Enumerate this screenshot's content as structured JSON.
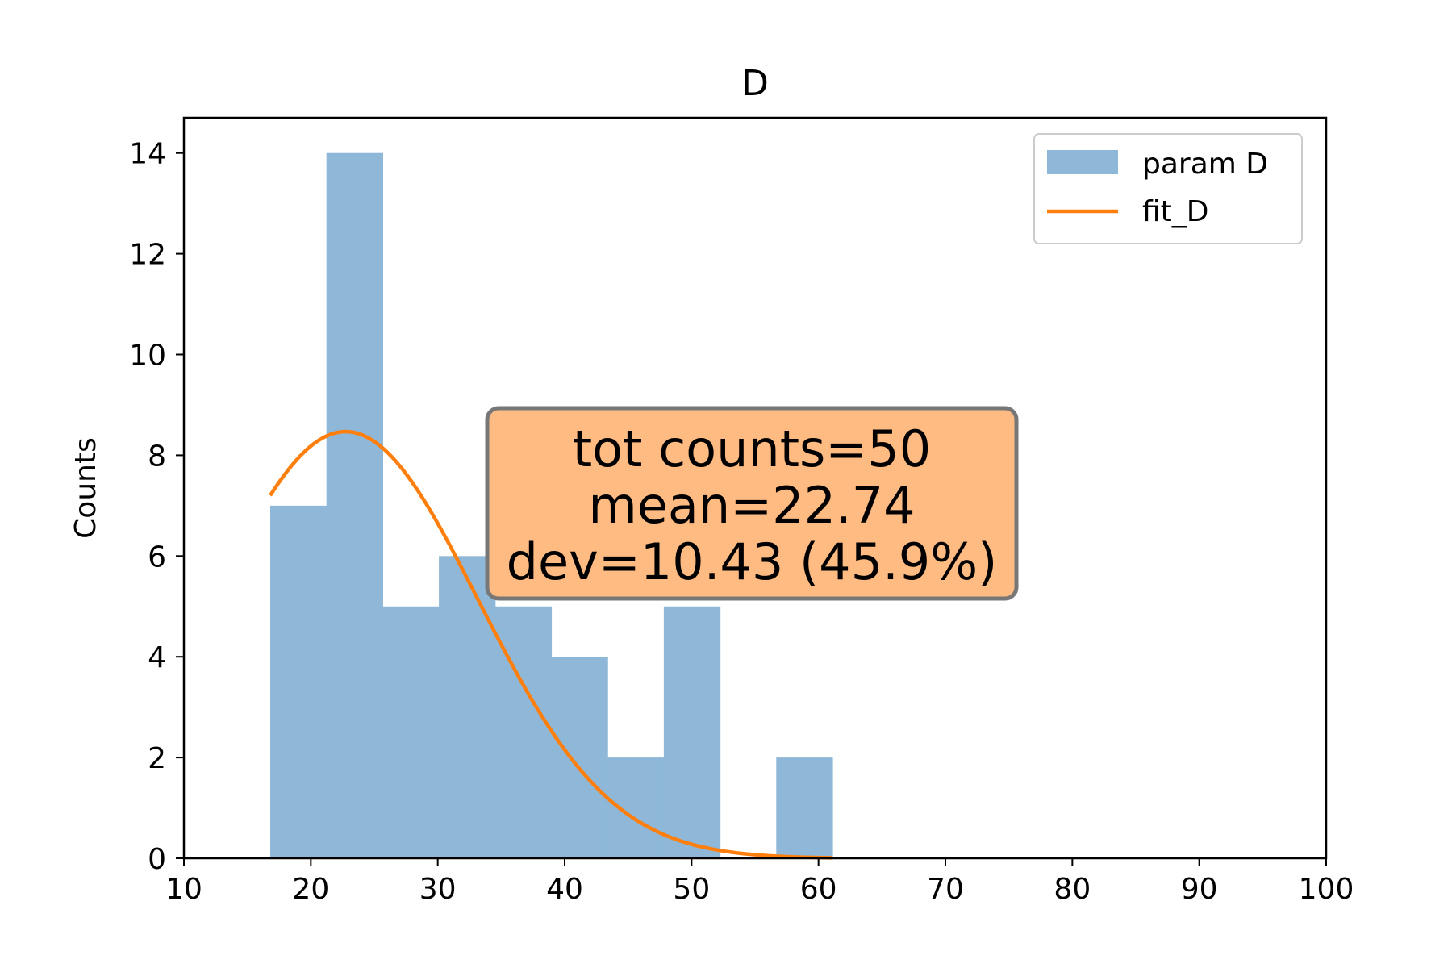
{
  "chart_data": {
    "type": "bar",
    "title": "D",
    "xlabel": "",
    "ylabel": "Counts",
    "xlim": [
      10,
      100
    ],
    "ylim": [
      0,
      14.7
    ],
    "x_ticks": [
      10,
      20,
      30,
      40,
      50,
      60,
      70,
      80,
      90,
      100
    ],
    "y_ticks": [
      0,
      2,
      4,
      6,
      8,
      10,
      12,
      14
    ],
    "grid": false,
    "legend_position": "top-right",
    "histogram": {
      "name": "param D",
      "color": "#8fb8d8",
      "bin_edges": [
        16.8,
        21.23,
        25.66,
        30.09,
        34.52,
        38.95,
        43.38,
        47.81,
        52.24,
        56.67,
        61.1
      ],
      "counts": [
        7,
        14,
        5,
        6,
        5,
        4,
        2,
        5,
        0,
        2
      ]
    },
    "fit": {
      "name": "fit_D",
      "color": "#ff7f0e",
      "mean": 22.74,
      "sigma": 10.43,
      "amplitude": 8.47,
      "x_range": [
        16.8,
        61.1
      ]
    },
    "annotation": {
      "lines": [
        "tot counts=50",
        "mean=22.74",
        "dev=10.43 (45.9%)"
      ],
      "background": "#ffbb82",
      "border": "#777777"
    }
  }
}
